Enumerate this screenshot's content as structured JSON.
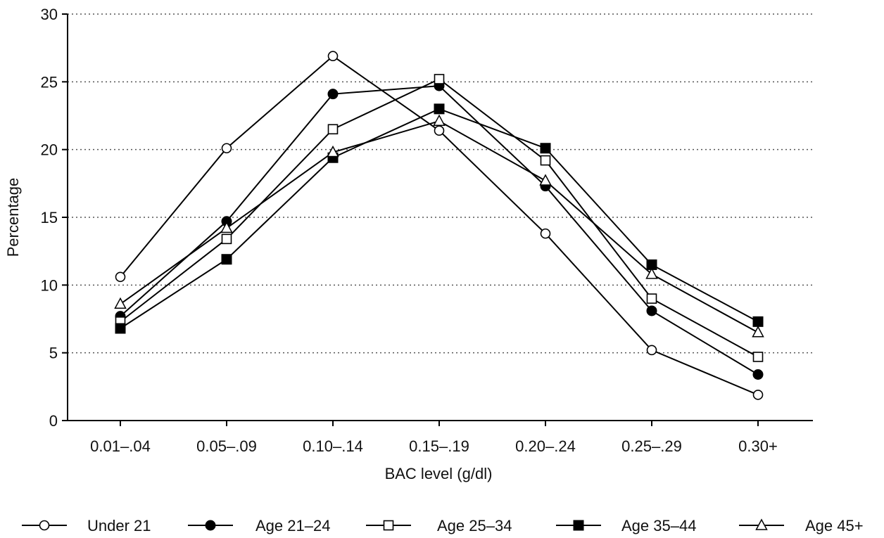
{
  "chart_data": {
    "type": "line",
    "title": "",
    "xlabel": "BAC level (g/dl)",
    "ylabel": "Percentage",
    "categories": [
      "0.01–.04",
      "0.05–.09",
      "0.10–.14",
      "0.15–.19",
      "0.20–.24",
      "0.25–.29",
      "0.30+"
    ],
    "ylim": [
      0,
      30
    ],
    "yticks": [
      0,
      5,
      10,
      15,
      20,
      25,
      30
    ],
    "grid": "horizontal-dotted",
    "legend_position": "bottom",
    "series": [
      {
        "name": "Under 21",
        "marker": "circle-open",
        "values": [
          10.6,
          20.1,
          26.9,
          21.4,
          13.8,
          5.2,
          1.9
        ]
      },
      {
        "name": "Age 21–24",
        "marker": "circle-filled",
        "values": [
          7.7,
          14.7,
          24.1,
          24.7,
          17.3,
          8.1,
          3.4
        ]
      },
      {
        "name": "Age 25–34",
        "marker": "square-open",
        "values": [
          7.3,
          13.4,
          21.5,
          25.2,
          19.2,
          9.0,
          4.7
        ]
      },
      {
        "name": "Age 35–44",
        "marker": "square-filled",
        "values": [
          6.8,
          11.9,
          19.4,
          23.0,
          20.1,
          11.5,
          7.3
        ]
      },
      {
        "name": "Age 45+",
        "marker": "triangle-open",
        "values": [
          8.6,
          14.2,
          19.8,
          22.1,
          17.7,
          10.8,
          6.5
        ]
      }
    ]
  }
}
